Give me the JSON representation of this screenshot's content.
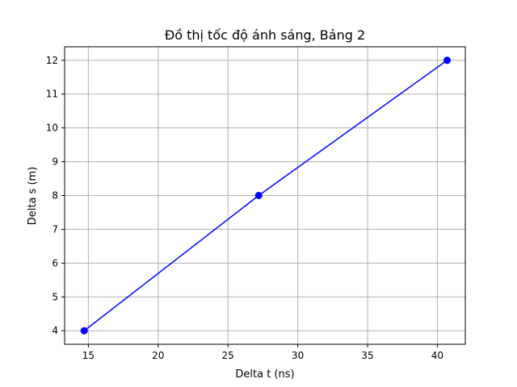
{
  "chart_data": {
    "type": "line",
    "title": "Đồ thị tốc độ ánh sáng, Bảng 2",
    "xlabel": "Delta t (ns)",
    "ylabel": "Delta s (m)",
    "xlim": [
      13.3,
      42.0
    ],
    "ylim": [
      3.6,
      12.4
    ],
    "x_ticks": [
      15,
      20,
      25,
      30,
      35,
      40
    ],
    "y_ticks": [
      4,
      5,
      6,
      7,
      8,
      9,
      10,
      11,
      12
    ],
    "grid": true,
    "series": [
      {
        "x": [
          14.7,
          27.2,
          40.7
        ],
        "y": [
          4,
          8,
          12
        ],
        "color": "#0000ff",
        "marker": "circle"
      }
    ]
  },
  "colors": {
    "grid": "#b0b0b0",
    "axes": "#000000",
    "background": "#ffffff"
  }
}
